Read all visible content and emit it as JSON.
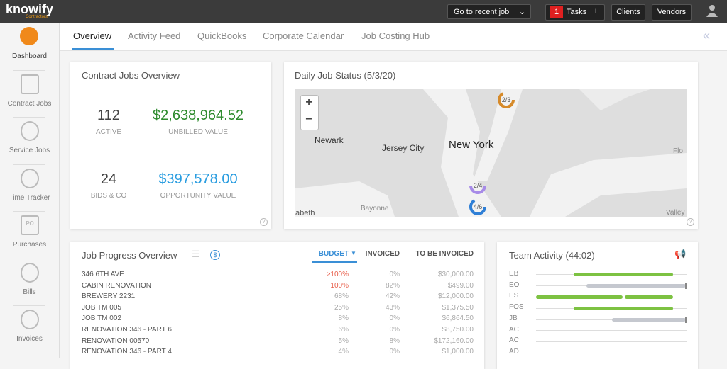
{
  "topbar": {
    "logo": "knowify",
    "logo_sub": "Contractors",
    "recent_job": "Go to recent job",
    "tasks_count": "1",
    "tasks": "Tasks",
    "tasks_add": "+",
    "clients": "Clients",
    "vendors": "Vendors"
  },
  "sidebar": [
    {
      "label": "Dashboard"
    },
    {
      "label": "Contract Jobs"
    },
    {
      "label": "Service Jobs"
    },
    {
      "label": "Time Tracker"
    },
    {
      "label": "Purchases",
      "icon": "PO"
    },
    {
      "label": "Bills"
    },
    {
      "label": "Invoices"
    }
  ],
  "tabs": [
    "Overview",
    "Activity Feed",
    "QuickBooks",
    "Corporate Calendar",
    "Job Costing Hub"
  ],
  "contract_jobs": {
    "title": "Contract Jobs Overview",
    "stats": [
      {
        "value": "112",
        "label": "ACTIVE"
      },
      {
        "value": "$2,638,964.52",
        "label": "UNBILLED VALUE"
      },
      {
        "value": "24",
        "label": "BIDS & CO"
      },
      {
        "value": "$397,578.00",
        "label": "OPPORTUNITY VALUE"
      }
    ],
    "help": "?"
  },
  "daily_status": {
    "title": "Daily Job Status (5/3/20)",
    "zoom_in": "+",
    "zoom_out": "−",
    "places": [
      "Newark",
      "Jersey City",
      "New York",
      "Flo",
      "Bayonne",
      "abeth",
      "Valley"
    ],
    "markers": [
      "2/3",
      "2/4",
      "4/6"
    ],
    "help": "?"
  },
  "job_progress": {
    "title": "Job Progress Overview",
    "currency": "$",
    "columns": [
      "BUDGET",
      "INVOICED",
      "TO BE INVOICED"
    ],
    "rows": [
      [
        "346 6TH AVE",
        ">100%",
        "0%",
        "$30,000.00"
      ],
      [
        "CABIN RENOVATION",
        "100%",
        "82%",
        "$499.00"
      ],
      [
        "BREWERY 2231",
        "68%",
        "42%",
        "$12,000.00"
      ],
      [
        "JOB TM 005",
        "25%",
        "43%",
        "$1,375.50"
      ],
      [
        "JOB TM 002",
        "8%",
        "0%",
        "$6,864.50"
      ],
      [
        "RENOVATION 346 - PART 6",
        "6%",
        "0%",
        "$8,750.00"
      ],
      [
        "RENOVATION 00570",
        "5%",
        "8%",
        "$172,160.00"
      ],
      [
        "RENOVATION 346 - PART 4",
        "4%",
        "0%",
        "$1,000.00"
      ]
    ]
  },
  "team_activity": {
    "title": "Team Activity (44:02)",
    "members": [
      "EB",
      "EO",
      "ES",
      "FOS",
      "JB",
      "AC",
      "AC",
      "AD"
    ]
  }
}
